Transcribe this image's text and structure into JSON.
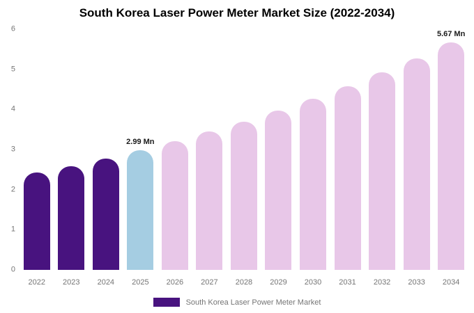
{
  "title": "South Korea Laser Power Meter Market Size (2022-2034)",
  "legend": {
    "label": "South Korea Laser Power Meter Market",
    "swatch_color": "#48137f"
  },
  "colors": {
    "historical": "#48137f",
    "highlight": "#a5cde2",
    "forecast": "#e8c7e8"
  },
  "chart_data": {
    "type": "bar",
    "title": "South Korea Laser Power Meter Market Size (2022-2034)",
    "xlabel": "",
    "ylabel": "",
    "ylim": [
      0,
      6
    ],
    "yticks": [
      0,
      1,
      2,
      3,
      4,
      5,
      6
    ],
    "grid": false,
    "legend_position": "bottom",
    "unit": "Mn",
    "categories": [
      "2022",
      "2023",
      "2024",
      "2025",
      "2026",
      "2027",
      "2028",
      "2029",
      "2030",
      "2031",
      "2032",
      "2033",
      "2034"
    ],
    "values": [
      2.42,
      2.59,
      2.78,
      2.99,
      3.21,
      3.45,
      3.7,
      3.97,
      4.27,
      4.58,
      4.92,
      5.28,
      5.67
    ],
    "bar_segments": [
      "historical",
      "historical",
      "historical",
      "highlight",
      "forecast",
      "forecast",
      "forecast",
      "forecast",
      "forecast",
      "forecast",
      "forecast",
      "forecast",
      "forecast"
    ],
    "annotations": [
      {
        "category": "2025",
        "text": "2.99 Mn"
      },
      {
        "category": "2034",
        "text": "5.67 Mn"
      }
    ]
  }
}
